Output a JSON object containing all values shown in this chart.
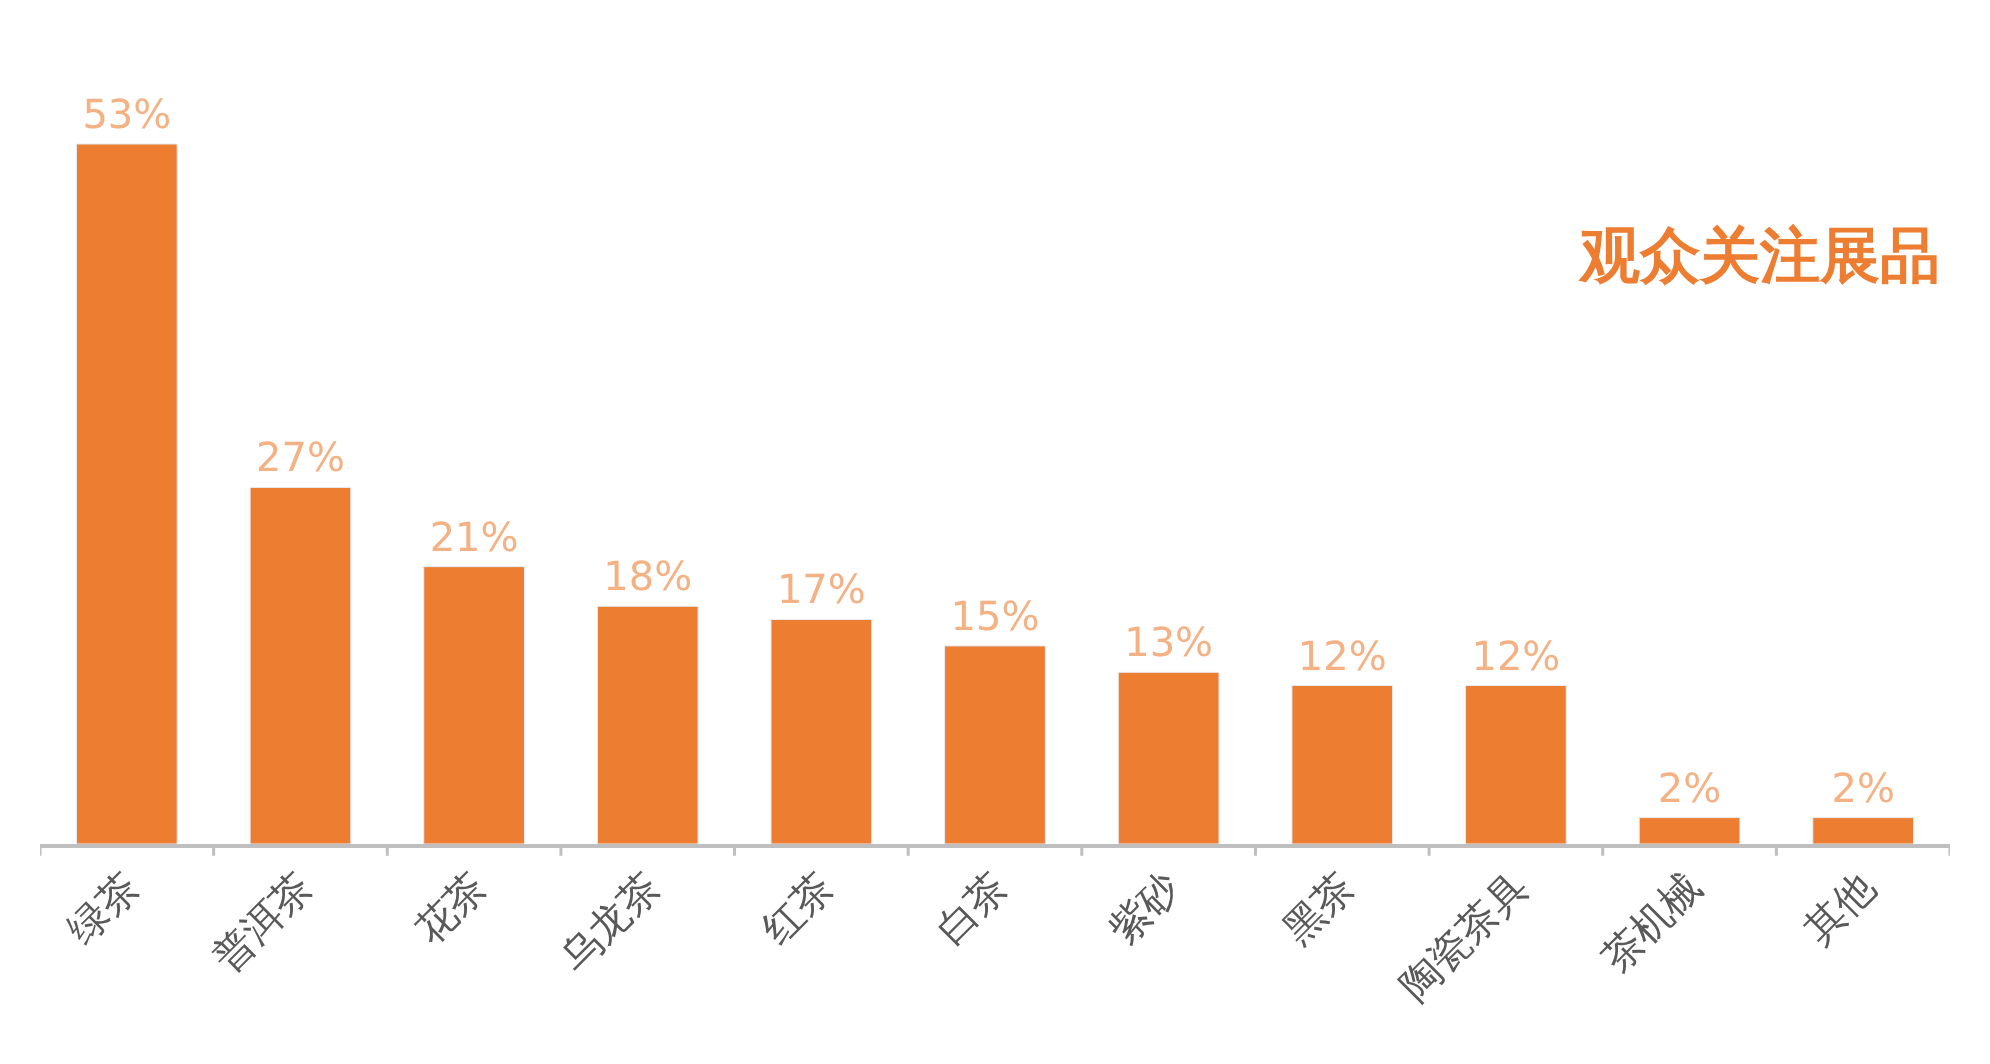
{
  "chart_data": {
    "type": "bar",
    "title": "观众关注展品",
    "categories": [
      "绿茶",
      "普洱茶",
      "花茶",
      "乌龙茶",
      "红茶",
      "白茶",
      "紫砂",
      "黑茶",
      "陶瓷茶具",
      "茶机械",
      "其他"
    ],
    "values": [
      53,
      27,
      21,
      18,
      17,
      15,
      13,
      12,
      12,
      2,
      2
    ],
    "value_labels": [
      "53%",
      "27%",
      "21%",
      "18%",
      "17%",
      "15%",
      "13%",
      "12%",
      "12%",
      "2%",
      "2%"
    ],
    "color": "#ed7d31"
  }
}
